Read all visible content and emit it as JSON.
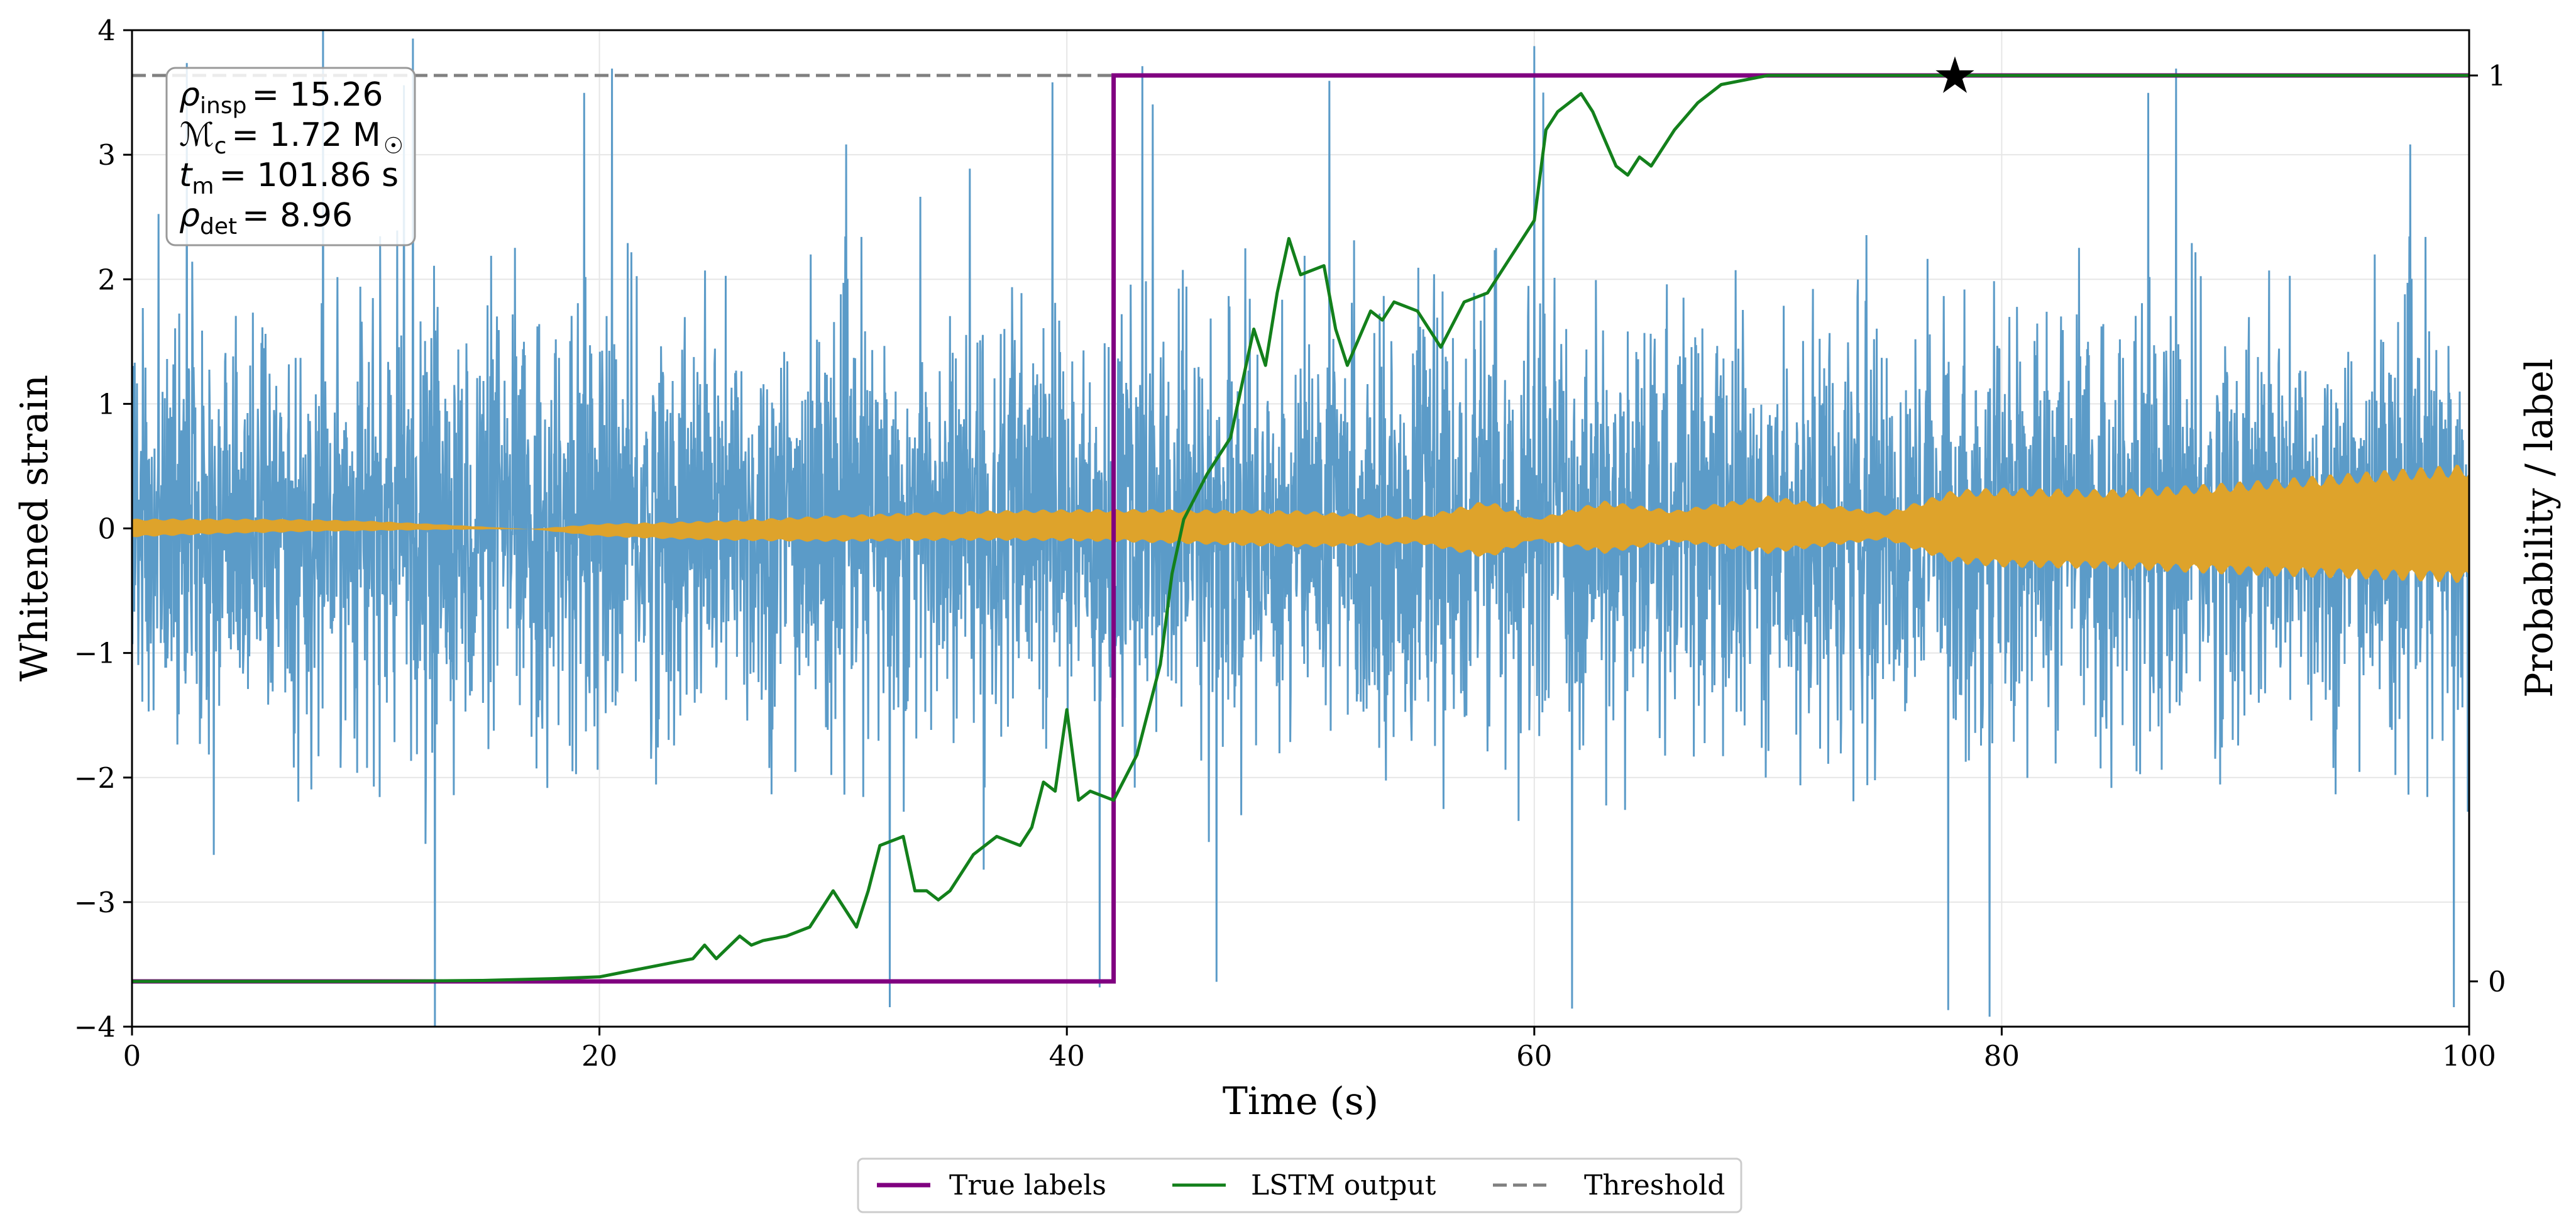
{
  "chart_data": {
    "type": "line",
    "xlabel": "Time (s)",
    "ylabel_left": "Whitened strain",
    "ylabel_right": "Probability / label",
    "xlim": [
      0,
      100
    ],
    "ylim_left": [
      -4,
      4
    ],
    "ylim_right": [
      -0.05,
      1.05
    ],
    "x_ticks": [
      "0",
      "20",
      "40",
      "60",
      "80",
      "100"
    ],
    "y_ticks_left": [
      "−4",
      "−3",
      "−2",
      "−1",
      "0",
      "1",
      "2",
      "3",
      "4"
    ],
    "y_ticks_right": [
      "0",
      "1"
    ],
    "grid": true,
    "annotation": {
      "rho_insp": {
        "symbol": "ρ",
        "sub": "insp",
        "eq": "= 15.26"
      },
      "chirp_mass": {
        "symbol": "ℳ",
        "sub": "c",
        "eq": "= 1.72 M",
        "unit_sub": "☉"
      },
      "t_m": {
        "symbol": "t",
        "sub": "m",
        "eq": "= 101.86 s"
      },
      "rho_det": {
        "symbol": "ρ",
        "sub": "det",
        "eq": "= 8.96"
      }
    },
    "series": [
      {
        "name": "Whitened strain",
        "axis": "left",
        "color": "#5b9bc8",
        "kind": "noise",
        "typical_amplitude": 1.3,
        "max_amplitude": 4.0
      },
      {
        "name": "Injected signal",
        "axis": "left",
        "color": "#dea32b",
        "kind": "envelope",
        "envelope_x": [
          0,
          10,
          17,
          20,
          30,
          40,
          50,
          55,
          58,
          60,
          63,
          66,
          70,
          75,
          78,
          80,
          85,
          90,
          95,
          100
        ],
        "envelope_y": [
          0.07,
          0.04,
          0.0,
          0.05,
          0.1,
          0.12,
          0.14,
          0.1,
          0.22,
          0.08,
          0.2,
          0.12,
          0.22,
          0.1,
          0.28,
          0.3,
          0.3,
          0.35,
          0.4,
          0.45
        ]
      },
      {
        "name": "True labels",
        "axis": "right",
        "color": "#800080",
        "x": [
          0,
          42,
          42,
          100
        ],
        "y": [
          0,
          0,
          1,
          1
        ]
      },
      {
        "name": "LSTM output",
        "axis": "right",
        "color": "#13801b",
        "x": [
          0,
          5,
          10,
          15,
          18,
          20,
          21,
          22,
          23,
          24,
          24.5,
          25,
          26,
          26.5,
          27,
          28,
          29,
          30,
          31,
          31.5,
          32,
          33,
          33.5,
          34,
          34.5,
          35,
          36,
          37,
          38,
          38.5,
          39,
          39.5,
          40,
          40.5,
          41,
          42,
          43,
          44,
          44.5,
          45,
          46,
          46.5,
          47,
          48,
          48.5,
          49,
          49.5,
          50,
          51,
          51.5,
          52,
          53,
          53.5,
          54,
          55,
          56,
          57,
          58,
          59,
          60,
          60.5,
          61,
          62,
          62.5,
          63,
          63.5,
          64,
          64.5,
          65,
          66,
          67,
          68,
          70,
          72,
          75,
          80,
          90,
          100
        ],
        "y": [
          0,
          0,
          0,
          0.001,
          0.003,
          0.005,
          0.01,
          0.015,
          0.02,
          0.025,
          0.04,
          0.025,
          0.05,
          0.04,
          0.045,
          0.05,
          0.06,
          0.1,
          0.06,
          0.1,
          0.15,
          0.16,
          0.1,
          0.1,
          0.09,
          0.1,
          0.14,
          0.16,
          0.15,
          0.17,
          0.22,
          0.21,
          0.3,
          0.2,
          0.21,
          0.2,
          0.25,
          0.35,
          0.45,
          0.51,
          0.56,
          0.58,
          0.6,
          0.72,
          0.68,
          0.76,
          0.82,
          0.78,
          0.79,
          0.72,
          0.68,
          0.74,
          0.73,
          0.75,
          0.74,
          0.7,
          0.75,
          0.76,
          0.8,
          0.84,
          0.94,
          0.96,
          0.98,
          0.96,
          0.93,
          0.9,
          0.89,
          0.91,
          0.9,
          0.94,
          0.97,
          0.99,
          1.0,
          1.0,
          1.0,
          1.0,
          1.0,
          1.0
        ]
      },
      {
        "name": "Threshold",
        "axis": "right",
        "color": "#808080",
        "dashed": true,
        "value": 1.0
      }
    ],
    "markers": [
      {
        "name": "detection-star",
        "x": 78,
        "y": 1.0,
        "axis": "right",
        "symbol": "★",
        "color": "#000000"
      }
    ],
    "legend": {
      "placement": "bottom-center",
      "entries": [
        {
          "label": "True labels",
          "color": "#800080",
          "style": "solid"
        },
        {
          "label": "LSTM output",
          "color": "#13801b",
          "style": "solid"
        },
        {
          "label": "Threshold",
          "color": "#808080",
          "style": "dashed"
        }
      ]
    }
  }
}
